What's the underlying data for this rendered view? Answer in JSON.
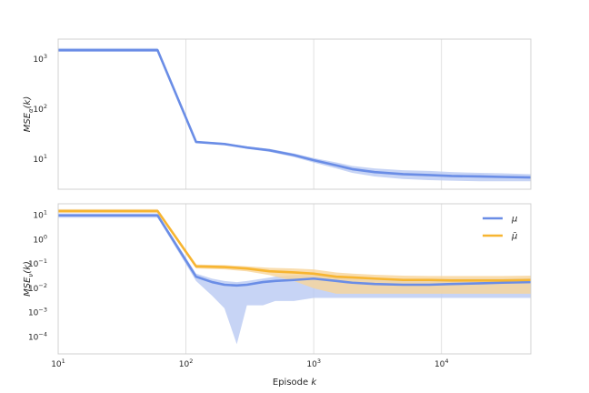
{
  "chart_data": [
    {
      "type": "line",
      "title": "",
      "ylabel": "MSE_α(k)",
      "xlabel": "",
      "xscale": "log",
      "yscale": "log",
      "xlim": [
        10,
        50000
      ],
      "ylim": [
        2.5,
        2500
      ],
      "grid": "x-major",
      "x_ticks": [
        {
          "value": 10,
          "label": ""
        },
        {
          "value": 100,
          "label": ""
        },
        {
          "value": 1000,
          "label": ""
        },
        {
          "value": 10000,
          "label": ""
        }
      ],
      "y_ticks": [
        {
          "value": 10,
          "label": "10",
          "sup": "1"
        },
        {
          "value": 100,
          "label": "10",
          "sup": "2"
        },
        {
          "value": 1000,
          "label": "10",
          "sup": "3"
        }
      ],
      "series": [
        {
          "color": "#6a8de6",
          "band_color": "#b9c9f3",
          "x": [
            10,
            60,
            120,
            200,
            300,
            450,
            700,
            1000,
            1500,
            2000,
            3000,
            5000,
            8000,
            12000,
            20000,
            30000,
            50000
          ],
          "y": [
            1500,
            1500,
            22,
            20,
            17,
            15,
            12,
            9.5,
            7.5,
            6.3,
            5.5,
            5.0,
            4.8,
            4.6,
            4.5,
            4.4,
            4.3
          ],
          "y_low": [
            1400,
            1400,
            21,
            19.5,
            16,
            14,
            11,
            8.5,
            6.5,
            5.3,
            4.5,
            4.0,
            3.8,
            3.7,
            3.6,
            3.6,
            3.6
          ],
          "y_high": [
            1650,
            1650,
            23,
            21,
            18,
            16,
            13,
            10.5,
            8.6,
            7.3,
            6.5,
            6.0,
            5.8,
            5.5,
            5.3,
            5.2,
            5.0
          ]
        }
      ]
    },
    {
      "type": "line",
      "title": "",
      "ylabel": "MSE_ν(k)",
      "xlabel": "Episode k",
      "xscale": "log",
      "yscale": "log",
      "xlim": [
        10,
        50000
      ],
      "ylim": [
        2e-05,
        30
      ],
      "grid": "x-major",
      "legend": "top-right",
      "x_ticks": [
        {
          "value": 10,
          "label": "10",
          "sup": "1"
        },
        {
          "value": 100,
          "label": "10",
          "sup": "2"
        },
        {
          "value": 1000,
          "label": "10",
          "sup": "3"
        },
        {
          "value": 10000,
          "label": "10",
          "sup": "4"
        }
      ],
      "y_ticks": [
        {
          "value": 0.0001,
          "label": "10",
          "sup": "−4"
        },
        {
          "value": 0.001,
          "label": "10",
          "sup": "−3"
        },
        {
          "value": 0.01,
          "label": "10",
          "sup": "−2"
        },
        {
          "value": 0.1,
          "label": "10",
          "sup": "−1"
        },
        {
          "value": 1,
          "label": "10",
          "sup": "0"
        },
        {
          "value": 10,
          "label": "10",
          "sup": "1"
        }
      ],
      "series": [
        {
          "name": "μ",
          "color": "#6a8de6",
          "band_color": "#b9c9f3",
          "x": [
            10,
            60,
            120,
            160,
            200,
            250,
            300,
            400,
            500,
            700,
            1000,
            1500,
            2000,
            3000,
            5000,
            8000,
            12000,
            20000,
            30000,
            50000
          ],
          "y": [
            10,
            10,
            0.03,
            0.018,
            0.014,
            0.013,
            0.014,
            0.018,
            0.02,
            0.022,
            0.025,
            0.02,
            0.017,
            0.015,
            0.014,
            0.014,
            0.015,
            0.016,
            0.017,
            0.018
          ],
          "y_low": [
            8,
            8,
            0.02,
            0.005,
            0.0015,
            5e-05,
            0.002,
            0.002,
            0.003,
            0.003,
            0.004,
            0.004,
            0.004,
            0.004,
            0.004,
            0.004,
            0.004,
            0.004,
            0.004,
            0.004
          ],
          "y_high": [
            12,
            12,
            0.04,
            0.025,
            0.02,
            0.018,
            0.02,
            0.025,
            0.03,
            0.035,
            0.035,
            0.03,
            0.028,
            0.026,
            0.025,
            0.025,
            0.025,
            0.025,
            0.025,
            0.026
          ]
        },
        {
          "name": "μ̄",
          "color": "#f7b531",
          "band_color": "#f8d59a",
          "x": [
            10,
            60,
            120,
            200,
            300,
            450,
            700,
            1000,
            1500,
            2000,
            3000,
            5000,
            8000,
            12000,
            20000,
            30000,
            50000
          ],
          "y": [
            15,
            15,
            0.08,
            0.075,
            0.065,
            0.05,
            0.045,
            0.04,
            0.03,
            0.028,
            0.025,
            0.022,
            0.022,
            0.021,
            0.021,
            0.021,
            0.022
          ],
          "y_low": [
            13,
            13,
            0.065,
            0.06,
            0.05,
            0.035,
            0.02,
            0.01,
            0.006,
            0.006,
            0.006,
            0.006,
            0.006,
            0.006,
            0.006,
            0.006,
            0.006
          ],
          "y_high": [
            18,
            18,
            0.095,
            0.09,
            0.08,
            0.07,
            0.065,
            0.06,
            0.045,
            0.04,
            0.036,
            0.033,
            0.032,
            0.032,
            0.032,
            0.032,
            0.033
          ]
        }
      ]
    }
  ]
}
